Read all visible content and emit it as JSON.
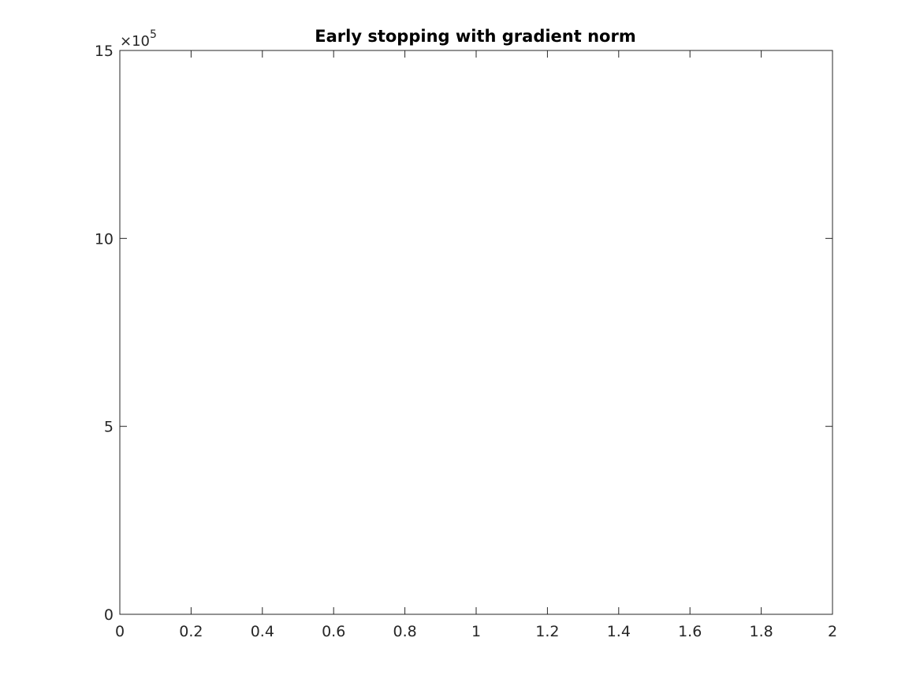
{
  "chart_data": {
    "type": "line",
    "title": "Early stopping with gradient norm",
    "xlabel": "",
    "ylabel": "",
    "xlim": [
      0,
      2
    ],
    "ylim": [
      0,
      1500000
    ],
    "x_ticks": [
      0,
      0.2,
      0.4,
      0.6,
      0.8,
      1,
      1.2,
      1.4,
      1.6,
      1.8,
      2
    ],
    "x_tick_labels": [
      "0",
      "0.2",
      "0.4",
      "0.6",
      "0.8",
      "1",
      "1.2",
      "1.4",
      "1.6",
      "1.8",
      "2"
    ],
    "y_ticks": [
      0,
      500000,
      1000000,
      1500000
    ],
    "y_tick_labels": [
      "0",
      "5",
      "10",
      "15"
    ],
    "y_exponent": {
      "prefix": "×10",
      "power": "5"
    },
    "grid": false,
    "box": true,
    "series": []
  }
}
